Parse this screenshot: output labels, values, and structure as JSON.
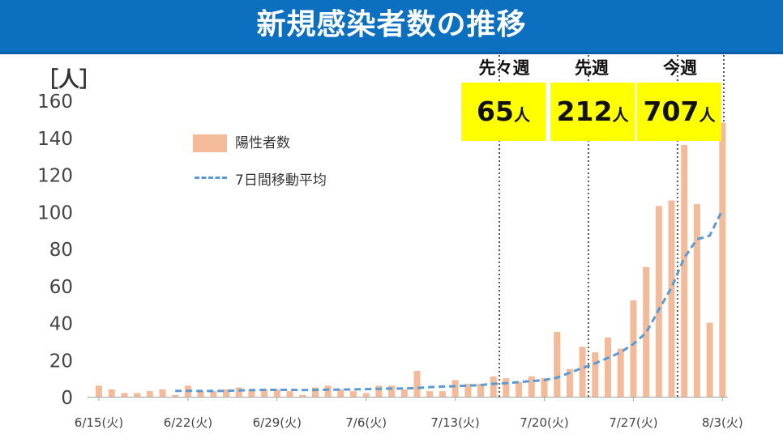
{
  "title": "新規感染者数の推移",
  "unit_label": "［人］",
  "legend": {
    "bars": "陽性者数",
    "line": "7日間移動平均"
  },
  "weeks": [
    {
      "label": "先々週",
      "count": "65",
      "unit": "人"
    },
    {
      "label": "先週",
      "count": "212",
      "unit": "人"
    },
    {
      "label": "今週",
      "count": "707",
      "unit": "人"
    }
  ],
  "colors": {
    "title_bg": "#0c6fc0",
    "bar": "#f4bb9a",
    "line": "#5b9bd5",
    "highlight": "#ffff00"
  },
  "chart_data": {
    "type": "bar",
    "title": "新規感染者数の推移",
    "ylabel": "［人］",
    "ylim": [
      0,
      160
    ],
    "yticks": [
      "0",
      "20",
      "40",
      "60",
      "80",
      "100",
      "120",
      "140",
      "160"
    ],
    "xtick_labels": [
      "6/15(火)",
      "6/22(火)",
      "6/29(火)",
      "7/6(火)",
      "7/13(火)",
      "7/20(火)",
      "7/27(火)",
      "8/3(火)"
    ],
    "grid": false,
    "legend_position": "upper-left",
    "series": [
      {
        "name": "陽性者数",
        "type": "bar",
        "values": [
          6,
          4,
          2,
          2,
          3,
          4,
          1,
          6,
          3,
          3,
          4,
          5,
          4,
          4,
          4,
          3,
          1,
          5,
          6,
          4,
          3,
          2,
          6,
          6,
          4,
          14,
          3,
          3,
          9,
          7,
          7,
          11,
          10,
          8,
          11,
          10,
          35,
          15,
          27,
          24,
          32,
          26,
          52,
          70,
          103,
          106,
          136,
          104,
          40,
          148
        ]
      },
      {
        "name": "7日間移動平均",
        "type": "line",
        "start_index": 6,
        "values": [
          3.2,
          3.2,
          3.1,
          3.1,
          3.2,
          3.4,
          3.6,
          3.7,
          3.7,
          3.7,
          3.6,
          3.7,
          3.8,
          3.9,
          4.0,
          4.1,
          4.3,
          4.4,
          4.5,
          4.7,
          5.2,
          5.5,
          5.7,
          6.0,
          6.3,
          7.0,
          7.3,
          7.9,
          8.5,
          9.0,
          10.3,
          13.0,
          15.5,
          18.0,
          21.0,
          24.0,
          28.5,
          34.5,
          47.0,
          59.0,
          75.0,
          85.0,
          87.0,
          101.0
        ]
      }
    ]
  }
}
